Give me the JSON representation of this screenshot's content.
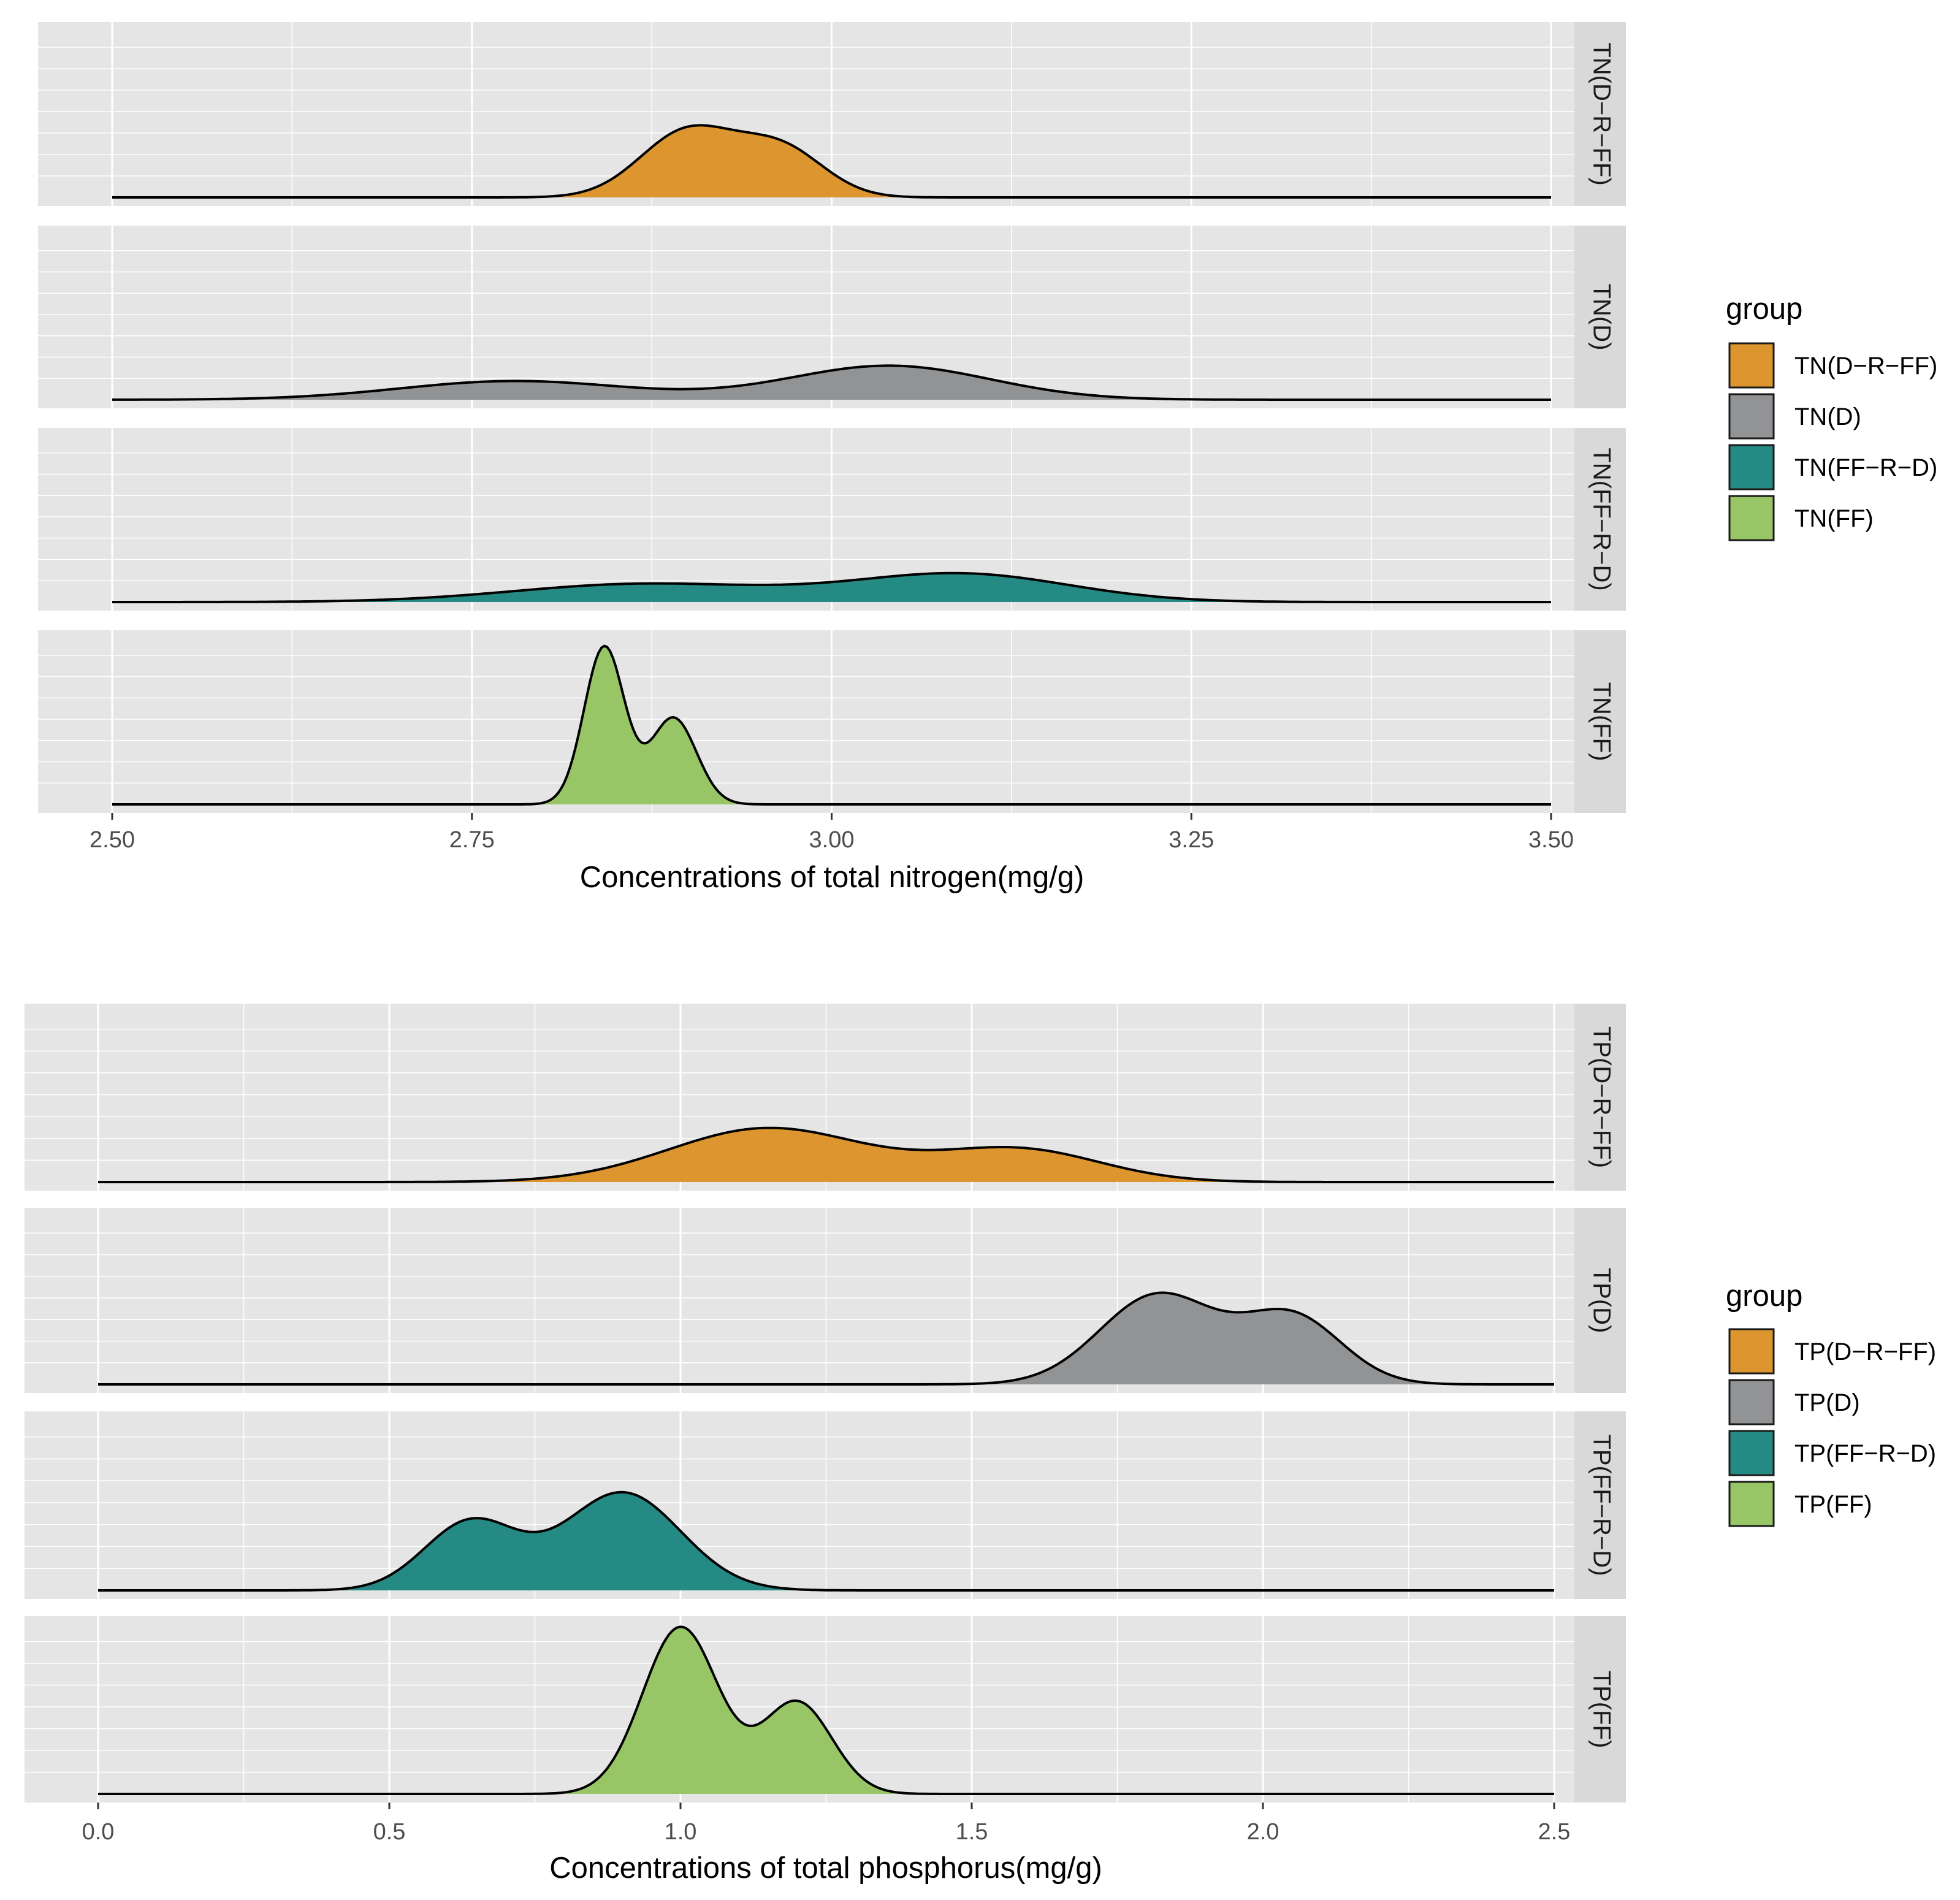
{
  "chart_data": [
    {
      "type": "ridgeline-density",
      "xlabel": "Concentrations of total nitrogen(mg/g)",
      "xlim": [
        2.5,
        3.5
      ],
      "x_ticks": [
        2.5,
        2.75,
        3.0,
        3.25,
        3.5
      ],
      "x_tick_labels": [
        "2.50",
        "2.75",
        "3.00",
        "3.25",
        "3.50"
      ],
      "legend": {
        "title": "group",
        "entries": [
          {
            "label": "TN(D−R−FF)",
            "color": "#dd962f"
          },
          {
            "label": "TN(D)",
            "color": "#929395"
          },
          {
            "label": "TN(FF−R−D)",
            "color": "#258984"
          },
          {
            "label": "TN(FF)",
            "color": "#98c566"
          }
        ]
      },
      "series": [
        {
          "name": "TN(D−R−FF)",
          "strip": "TN(D−R−FF)",
          "color": "#dd962f",
          "components": [
            {
              "mean": 2.9,
              "sd": 0.033,
              "weight": 1.0
            },
            {
              "mean": 2.965,
              "sd": 0.03,
              "weight": 0.72
            }
          ],
          "relative_peak": 0.42
        },
        {
          "name": "TN(D)",
          "strip": "TN(D)",
          "color": "#929395",
          "components": [
            {
              "mean": 2.78,
              "sd": 0.08,
              "weight": 0.55
            },
            {
              "mean": 3.04,
              "sd": 0.07,
              "weight": 1.0
            }
          ],
          "relative_peak": 0.2
        },
        {
          "name": "TN(FF−R−D)",
          "strip": "TN(FF−R−D)",
          "color": "#258984",
          "components": [
            {
              "mean": 2.87,
              "sd": 0.09,
              "weight": 0.65
            },
            {
              "mean": 3.09,
              "sd": 0.075,
              "weight": 1.0
            }
          ],
          "relative_peak": 0.17
        },
        {
          "name": "TN(FF)",
          "strip": "TN(FF)",
          "color": "#98c566",
          "components": [
            {
              "mean": 2.842,
              "sd": 0.014,
              "weight": 1.0
            },
            {
              "mean": 2.89,
              "sd": 0.016,
              "weight": 0.55
            }
          ],
          "relative_peak": 0.93
        }
      ]
    },
    {
      "type": "ridgeline-density",
      "xlabel": "Concentrations of total phosphorus(mg/g)",
      "xlim": [
        0.0,
        2.5
      ],
      "x_ticks": [
        0.0,
        0.5,
        1.0,
        1.5,
        2.0,
        2.5
      ],
      "x_tick_labels": [
        "0.0",
        "0.5",
        "1.0",
        "1.5",
        "2.0",
        "2.5"
      ],
      "legend": {
        "title": "group",
        "entries": [
          {
            "label": "TP(D−R−FF)",
            "color": "#dd962f"
          },
          {
            "label": "TP(D)",
            "color": "#929395"
          },
          {
            "label": "TP(FF−R−D)",
            "color": "#258984"
          },
          {
            "label": "TP(FF)",
            "color": "#98c566"
          }
        ]
      },
      "series": [
        {
          "name": "TP(D−R−FF)",
          "strip": "TP(D−R−FF)",
          "color": "#dd962f",
          "components": [
            {
              "mean": 1.15,
              "sd": 0.17,
              "weight": 1.0
            },
            {
              "mean": 1.58,
              "sd": 0.14,
              "weight": 0.6
            }
          ],
          "relative_peak": 0.31
        },
        {
          "name": "TP(D)",
          "strip": "TP(D)",
          "color": "#929395",
          "components": [
            {
              "mean": 1.82,
              "sd": 0.1,
              "weight": 1.0
            },
            {
              "mean": 2.05,
              "sd": 0.085,
              "weight": 0.75
            }
          ],
          "relative_peak": 0.53
        },
        {
          "name": "TP(FF−R−D)",
          "strip": "TP(FF−R−D)",
          "color": "#258984",
          "components": [
            {
              "mean": 0.64,
              "sd": 0.08,
              "weight": 0.7
            },
            {
              "mean": 0.9,
              "sd": 0.1,
              "weight": 1.0
            }
          ],
          "relative_peak": 0.56
        },
        {
          "name": "TP(FF)",
          "strip": "TP(FF)",
          "color": "#98c566",
          "components": [
            {
              "mean": 1.0,
              "sd": 0.065,
              "weight": 1.0
            },
            {
              "mean": 1.2,
              "sd": 0.06,
              "weight": 0.55
            }
          ],
          "relative_peak": 0.96
        }
      ]
    }
  ]
}
